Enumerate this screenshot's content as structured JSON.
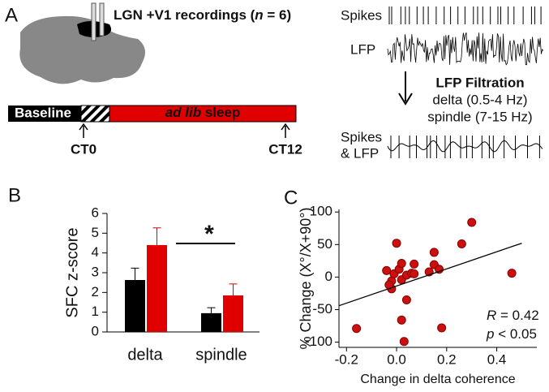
{
  "panel_a": {
    "label": "A",
    "title_prefix": "LGN +V1 recordings (",
    "title_n": "n",
    "title_suffix": " = 6)",
    "baseline": "Baseline",
    "sleep_italic": "ad lib",
    "sleep_rest": " sleep",
    "ct_start": "CT0",
    "ct_end": "CT12",
    "spikes": "Spikes",
    "lfp": "LFP",
    "filtration": "LFP Filtration",
    "delta_band": "delta (0.5-4 Hz)",
    "spindle_band": "spindle (7-15 Hz)",
    "combined_1": "Spikes",
    "combined_2": "& LFP"
  },
  "chart_data": [
    {
      "type": "bar",
      "panel": "B",
      "ylabel": "SFC z-score",
      "categories": [
        "delta",
        "spindle"
      ],
      "series": [
        {
          "color": "#000000",
          "values": [
            2.63,
            0.95
          ],
          "errors": [
            0.6,
            0.28
          ]
        },
        {
          "color": "#e00000",
          "values": [
            4.4,
            1.85
          ],
          "errors": [
            0.87,
            0.58
          ]
        }
      ],
      "ylim": [
        0,
        6
      ],
      "yticks": [
        0,
        1,
        2,
        3,
        4,
        5,
        6
      ],
      "annotation": "*"
    },
    {
      "type": "scatter",
      "panel": "C",
      "ylabel": "% Change (X°/X+90°)",
      "xlabel": "Change in delta coherence",
      "color": "#cc1010",
      "x": [
        -0.16,
        -0.04,
        0.0,
        -0.02,
        -0.02,
        -0.01,
        0.01,
        0.02,
        0.04,
        0.06,
        0.07,
        0.07,
        0.02,
        0.13,
        0.15,
        0.15,
        0.17,
        0.02,
        0.03,
        0.04,
        0.18,
        0.26,
        0.3,
        0.46,
        -0.03
      ],
      "y": [
        -79,
        10,
        52,
        -6,
        -18,
        5,
        12,
        -4,
        3,
        6,
        5,
        20,
        21,
        8,
        38,
        19,
        12,
        -66,
        -99,
        -35,
        -78,
        51,
        84,
        6,
        -12
      ],
      "trend": {
        "x": [
          -0.23,
          0.5
        ],
        "y": [
          -44,
          52
        ]
      },
      "xlim": [
        -0.23,
        0.56
      ],
      "xticks": [
        -0.2,
        {
          "value": 0,
          "label": "0.0"
        },
        0.2,
        0.4
      ],
      "ylim": [
        -108,
        104
      ],
      "yticks": [
        -100,
        -50,
        0,
        50,
        100
      ],
      "stat_r": "R",
      "stat_r_value": " = 0.42",
      "stat_p": "p",
      "stat_p_value": " < 0.05"
    }
  ]
}
